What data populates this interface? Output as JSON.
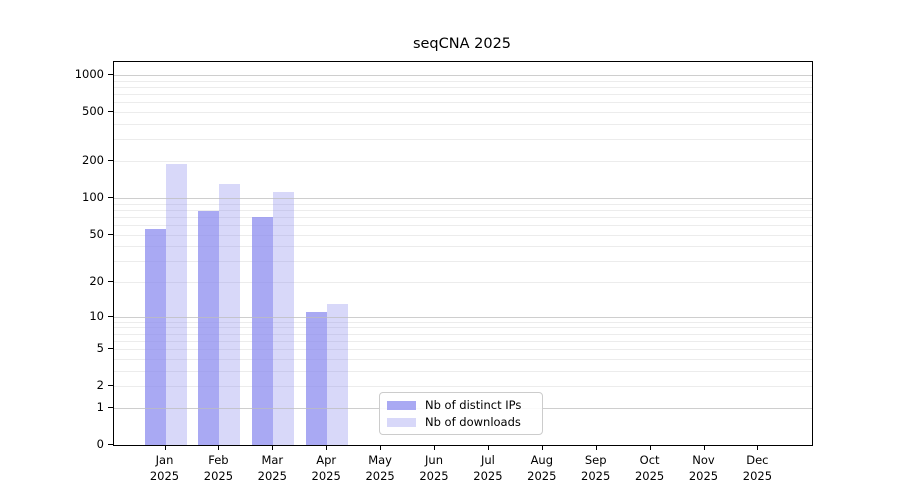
{
  "chart_data": {
    "type": "bar",
    "title": "seqCNA 2025",
    "categories": [
      "Jan",
      "Feb",
      "Mar",
      "Apr",
      "May",
      "Jun",
      "Jul",
      "Aug",
      "Sep",
      "Oct",
      "Nov",
      "Dec"
    ],
    "x_year_suffix": "2025",
    "series": [
      {
        "name": "Nb of distinct IPs",
        "color": "#8888ee",
        "alpha": 0.72,
        "values": [
          56,
          78,
          70,
          11,
          0,
          0,
          0,
          0,
          0,
          0,
          0,
          0
        ]
      },
      {
        "name": "Nb of downloads",
        "color": "#8888ee",
        "alpha": 0.33,
        "values": [
          188,
          130,
          111,
          13,
          0,
          0,
          0,
          0,
          0,
          0,
          0,
          0
        ]
      }
    ],
    "xlabel": "",
    "ylabel": "",
    "y_ticks": [
      0,
      1,
      2,
      5,
      10,
      20,
      50,
      100,
      200,
      500,
      1000
    ],
    "y_scale": "log10(value+1)",
    "ylim_top_value": 1276,
    "grid": "horizontal",
    "major_grid_values": [
      1,
      10,
      100,
      1000
    ],
    "legend_position": "lower-center-left",
    "colors": {
      "bar_base": "#8888ee",
      "major_grid": "#bdbdbd",
      "minor_grid": "#ececec",
      "spine": "#000000",
      "legend_border": "#cccccc"
    }
  }
}
